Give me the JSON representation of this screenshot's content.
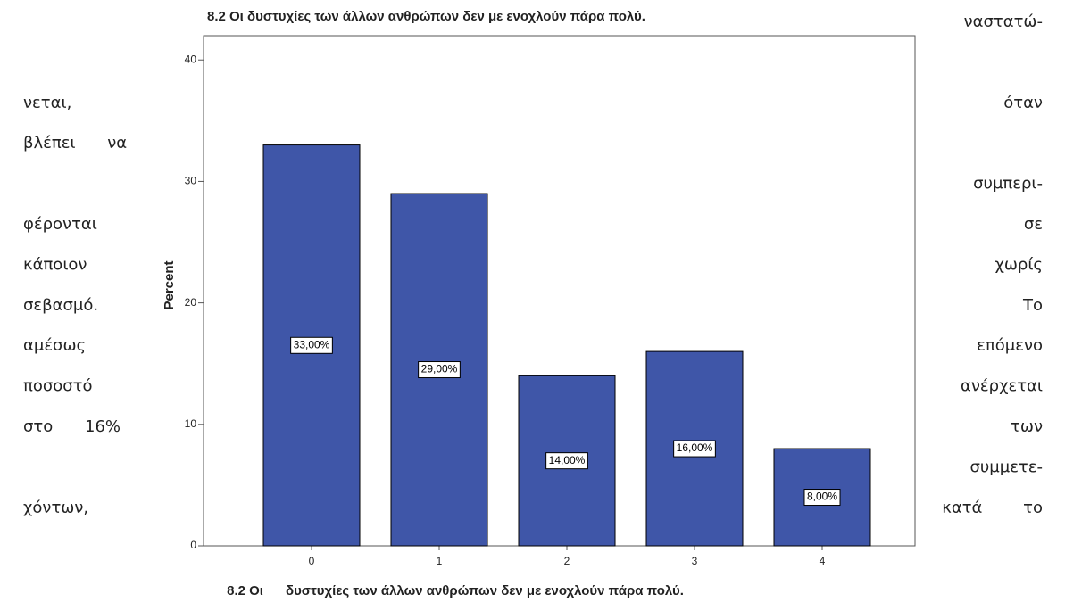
{
  "chart_data": {
    "type": "bar",
    "title": "8.2 Οι δυστυχίες των άλλων ανθρώπων δεν με ενοχλούν πάρα πολύ.",
    "x_label": "8.2 Οι      δυστυχίες των άλλων ανθρώπων δεν με ενοχλούν πάρα πολύ.",
    "y_label": "Percent",
    "categories": [
      "0",
      "1",
      "2",
      "3",
      "4"
    ],
    "values": [
      33,
      29,
      14,
      16,
      8
    ],
    "value_labels": [
      "33,00%",
      "29,00%",
      "14,00%",
      "16,00%",
      "8,00%"
    ],
    "color": "#3f56a8",
    "ylim": [
      0,
      42
    ],
    "yticks": [
      0,
      10,
      20,
      30,
      40
    ],
    "grid": false
  },
  "left_text": [
    {
      "text": "νεται,",
      "line": 2
    },
    {
      "text": "βλέπει να",
      "line": 3
    },
    {
      "text": "φέρονται",
      "line": 5
    },
    {
      "text": "κάποιον",
      "line": 6
    },
    {
      "text": "σεβασμό.",
      "line": 7
    },
    {
      "text": "αμέσως",
      "line": 8
    },
    {
      "text": "ποσοστό",
      "line": 9
    },
    {
      "text": "στο 16%",
      "line": 10
    },
    {
      "text": "χόντων,",
      "line": 12
    }
  ],
  "right_text": [
    {
      "text": "ναστατώ-",
      "line": 0
    },
    {
      "text": "όταν",
      "line": 2
    },
    {
      "text": "συμπερι-",
      "line": 4
    },
    {
      "text": "σε",
      "line": 5
    },
    {
      "text": "χωρίς",
      "line": 6
    },
    {
      "text": "Το",
      "line": 7
    },
    {
      "text": "επόμενο",
      "line": 8
    },
    {
      "text": "ανέρχεται",
      "line": 9
    },
    {
      "text": "των",
      "line": 10
    },
    {
      "text": "συμμετε-",
      "line": 11
    },
    {
      "text": "κατά το",
      "line": 12
    }
  ]
}
